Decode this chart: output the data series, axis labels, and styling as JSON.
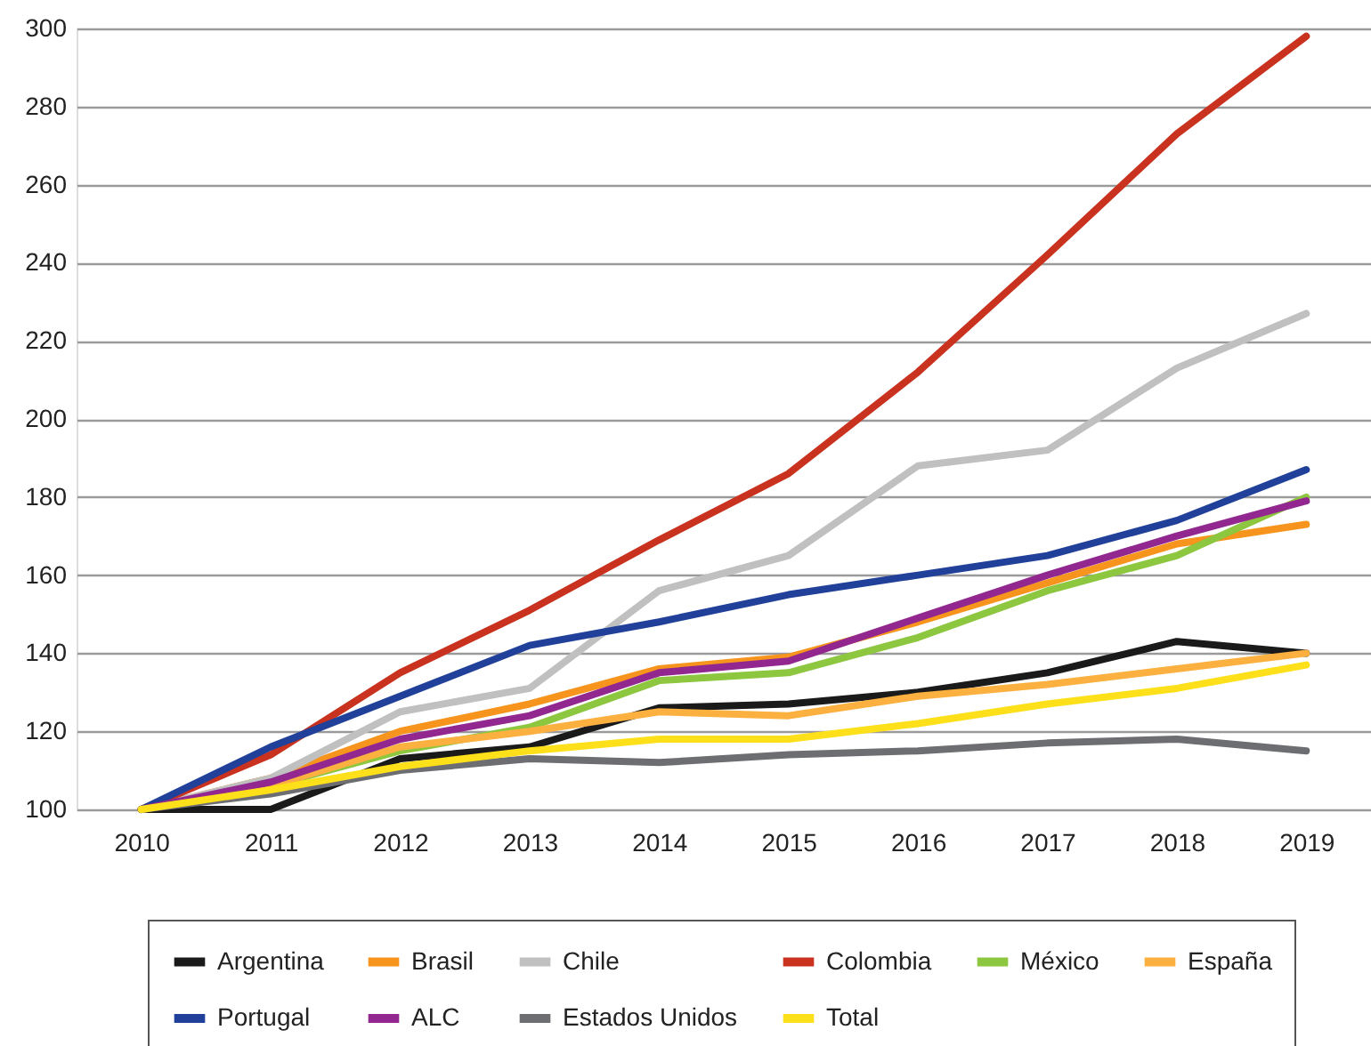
{
  "chart_data": {
    "type": "line",
    "categories": [
      "2010",
      "2011",
      "2012",
      "2013",
      "2014",
      "2015",
      "2016",
      "2017",
      "2018",
      "2019"
    ],
    "series": [
      {
        "name": "Argentina",
        "color": "#1a1a1a",
        "values": [
          100,
          100,
          113,
          116,
          126,
          127,
          130,
          135,
          143,
          140
        ]
      },
      {
        "name": "Brasil",
        "color": "#f7941d",
        "values": [
          100,
          108,
          120,
          127,
          136,
          139,
          148,
          158,
          168,
          173
        ]
      },
      {
        "name": "Chile",
        "color": "#c0c0c0",
        "values": [
          100,
          108,
          125,
          131,
          156,
          165,
          188,
          192,
          213,
          227
        ]
      },
      {
        "name": "Colombia",
        "color": "#c8321e",
        "values": [
          100,
          114,
          135,
          151,
          169,
          186,
          212,
          242,
          273,
          298
        ]
      },
      {
        "name": "México",
        "color": "#8dc63f",
        "values": [
          100,
          106,
          115,
          121,
          133,
          135,
          144,
          156,
          165,
          180
        ]
      },
      {
        "name": "España",
        "color": "#fbb040",
        "values": [
          100,
          106,
          116,
          120,
          125,
          124,
          129,
          132,
          136,
          140
        ]
      },
      {
        "name": "Portugal",
        "color": "#21409a",
        "values": [
          100,
          116,
          129,
          142,
          148,
          155,
          160,
          165,
          174,
          187
        ]
      },
      {
        "name": "ALC",
        "color": "#92278f",
        "values": [
          100,
          107,
          118,
          124,
          135,
          138,
          149,
          160,
          170,
          179
        ]
      },
      {
        "name": "Estados Unidos",
        "color": "#6d6e71",
        "values": [
          100,
          104,
          110,
          113,
          112,
          114,
          115,
          117,
          118,
          115
        ]
      },
      {
        "name": "Total",
        "color": "#fde01a",
        "values": [
          100,
          105,
          111,
          115,
          118,
          118,
          122,
          127,
          131,
          137
        ]
      }
    ],
    "ylim": [
      100,
      300
    ],
    "yticks": [
      100,
      120,
      140,
      160,
      180,
      200,
      220,
      240,
      260,
      280,
      300
    ],
    "grid": "y",
    "legend": "bottom",
    "marker": "none",
    "line_style": "solid"
  }
}
